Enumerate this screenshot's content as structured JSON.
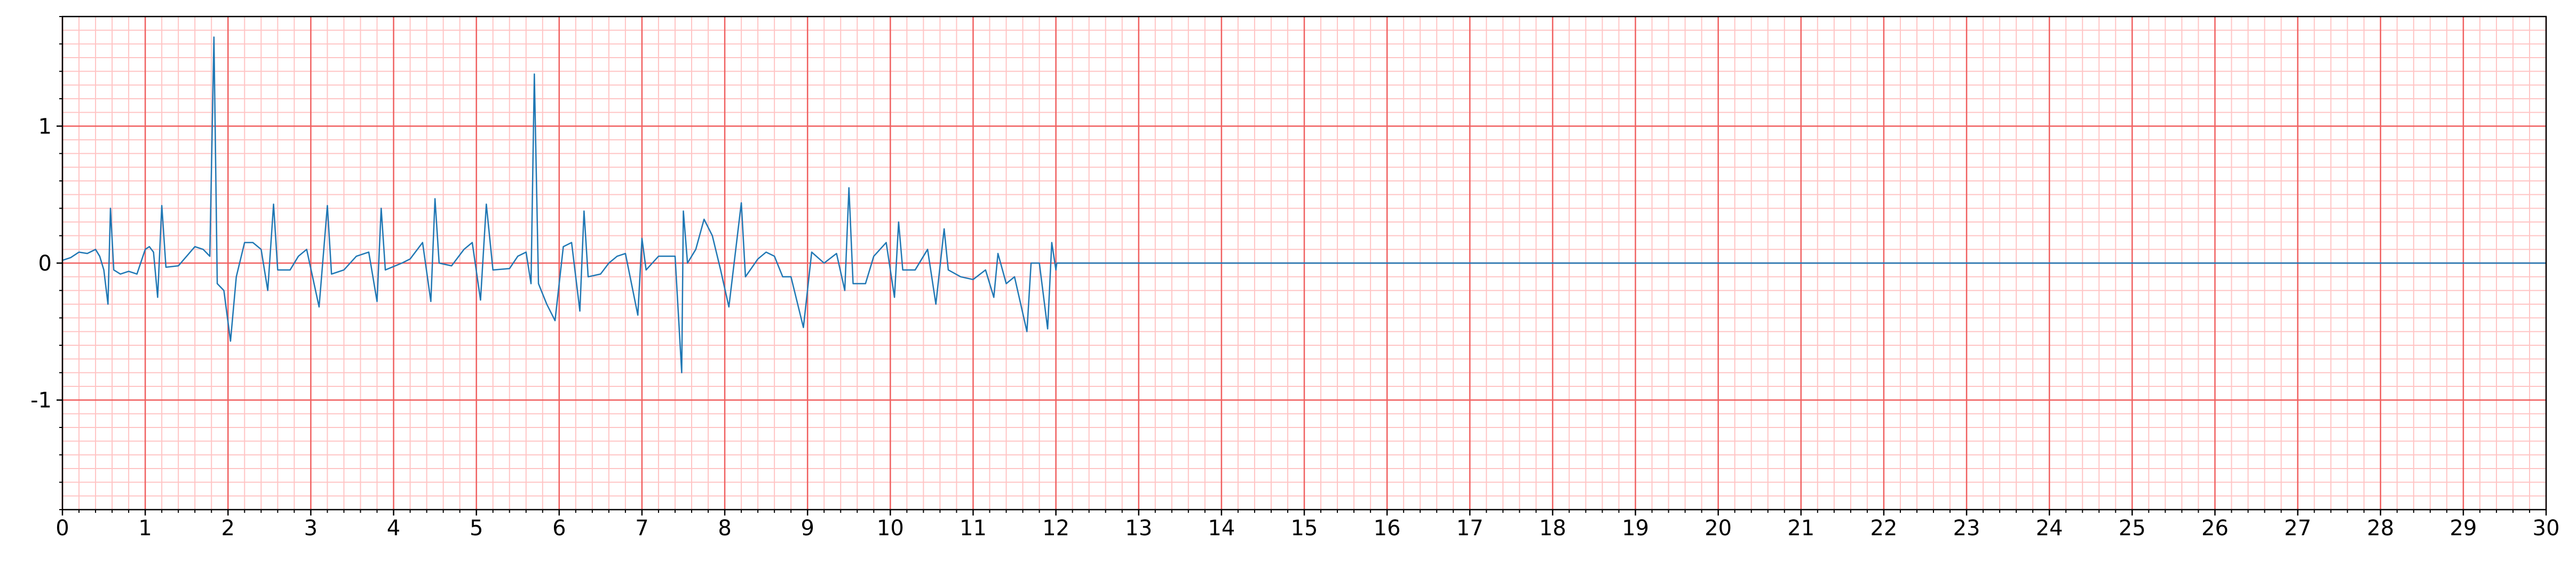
{
  "chart_data": {
    "type": "line",
    "x": [
      0,
      0.1,
      0.2,
      0.3,
      0.4,
      0.45,
      0.5,
      0.55,
      0.58,
      0.62,
      0.7,
      0.8,
      0.9,
      1.0,
      1.05,
      1.1,
      1.15,
      1.2,
      1.25,
      1.4,
      1.5,
      1.6,
      1.7,
      1.78,
      1.83,
      1.87,
      1.95,
      2.03,
      2.1,
      2.2,
      2.3,
      2.4,
      2.48,
      2.55,
      2.6,
      2.75,
      2.85,
      2.95,
      3.1,
      3.2,
      3.25,
      3.4,
      3.55,
      3.7,
      3.8,
      3.85,
      3.9,
      4.1,
      4.2,
      4.35,
      4.45,
      4.5,
      4.55,
      4.7,
      4.85,
      4.95,
      5.05,
      5.12,
      5.2,
      5.4,
      5.5,
      5.6,
      5.66,
      5.7,
      5.75,
      5.85,
      5.95,
      6.05,
      6.15,
      6.25,
      6.3,
      6.35,
      6.5,
      6.6,
      6.7,
      6.8,
      6.95,
      7.0,
      7.05,
      7.2,
      7.4,
      7.48,
      7.5,
      7.55,
      7.65,
      7.75,
      7.85,
      7.95,
      8.05,
      8.2,
      8.25,
      8.4,
      8.5,
      8.6,
      8.7,
      8.8,
      8.95,
      9.05,
      9.2,
      9.35,
      9.45,
      9.5,
      9.55,
      9.7,
      9.8,
      9.95,
      10.05,
      10.1,
      10.15,
      10.3,
      10.45,
      10.55,
      10.65,
      10.7,
      10.85,
      11.0,
      11.15,
      11.25,
      11.3,
      11.4,
      11.5,
      11.65,
      11.7,
      11.8,
      11.9,
      11.95,
      12.0,
      12.01,
      30
    ],
    "values": [
      0.02,
      0.04,
      0.08,
      0.07,
      0.1,
      0.05,
      -0.05,
      -0.3,
      0.4,
      -0.05,
      -0.08,
      -0.06,
      -0.08,
      0.1,
      0.12,
      0.08,
      -0.25,
      0.42,
      -0.03,
      -0.02,
      0.05,
      0.12,
      0.1,
      0.05,
      1.65,
      -0.15,
      -0.2,
      -0.57,
      -0.1,
      0.15,
      0.15,
      0.1,
      -0.2,
      0.43,
      -0.05,
      -0.05,
      0.05,
      0.1,
      -0.32,
      0.42,
      -0.08,
      -0.05,
      0.05,
      0.08,
      -0.28,
      0.4,
      -0.05,
      0,
      0.03,
      0.15,
      -0.28,
      0.47,
      0,
      -0.02,
      0.1,
      0.15,
      -0.27,
      0.43,
      -0.05,
      -0.04,
      0.05,
      0.08,
      -0.15,
      1.38,
      -0.15,
      -0.3,
      -0.42,
      0.12,
      0.15,
      -0.35,
      0.38,
      -0.1,
      -0.08,
      0,
      0.05,
      0.07,
      -0.38,
      0.18,
      -0.05,
      0.05,
      0.05,
      -0.8,
      0.38,
      0,
      0.1,
      0.32,
      0.2,
      -0.05,
      -0.32,
      0.44,
      -0.1,
      0.03,
      0.08,
      0.05,
      -0.1,
      -0.1,
      -0.47,
      0.08,
      0,
      0.07,
      -0.2,
      0.55,
      -0.15,
      -0.15,
      0.05,
      0.15,
      -0.25,
      0.3,
      -0.05,
      -0.05,
      0.1,
      -0.3,
      0.25,
      -0.05,
      -0.1,
      -0.12,
      -0.05,
      -0.25,
      0.07,
      -0.15,
      -0.1,
      -0.5,
      0,
      0,
      -0.48,
      0.15,
      -0.05,
      0,
      0
    ],
    "color": "#1f77b4",
    "xlim": [
      0,
      30
    ],
    "xticks": [
      0,
      1,
      2,
      3,
      4,
      5,
      6,
      7,
      8,
      9,
      10,
      11,
      12,
      13,
      14,
      15,
      16,
      17,
      18,
      19,
      20,
      21,
      22,
      23,
      24,
      25,
      26,
      27,
      28,
      29,
      30
    ],
    "ylim": [
      -1.8,
      1.8
    ],
    "yticks": [
      -1,
      0,
      1
    ],
    "grid": true
  }
}
